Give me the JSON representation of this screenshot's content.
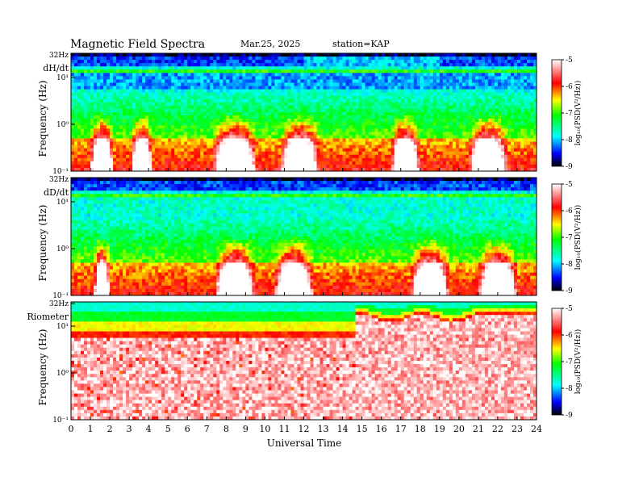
{
  "header": {
    "title": "Magnetic  Field  Spectra",
    "date": "Mar.25, 2025",
    "station": "station=KAP"
  },
  "chart_data": [
    {
      "type": "heatmap",
      "panel_label": "dH/dt",
      "ylabel": "Frequency  (Hz)",
      "ytick_labels": [
        "32Hz",
        "10¹",
        "10⁰",
        "10⁻¹"
      ],
      "y_scale": "log",
      "xlim": [
        0,
        24
      ],
      "colorbar": {
        "ticks": [
          "-5",
          "-6",
          "-7",
          "-8",
          "-9"
        ],
        "label": "log₁₀(PSD(V²/Hz))",
        "range": [
          -9,
          -5
        ]
      },
      "pc_band_hours": [
        [
          1,
          2.2
        ],
        [
          3.1,
          4.2
        ],
        [
          7.3,
          9.6
        ],
        [
          10.8,
          12.8
        ],
        [
          16.5,
          18
        ],
        [
          20.5,
          22.5
        ]
      ]
    },
    {
      "type": "heatmap",
      "panel_label": "dD/dt",
      "ylabel": "Frequency  (Hz)",
      "ytick_labels": [
        "32Hz",
        "10¹",
        "10⁰",
        "10⁻¹"
      ],
      "y_scale": "log",
      "xlim": [
        0,
        24
      ],
      "colorbar": {
        "ticks": [
          "-5",
          "-6",
          "-7",
          "-8",
          "-9"
        ],
        "label": "log₁₀(PSD(V²/Hz))",
        "range": [
          -9,
          -5
        ]
      },
      "pc_band_hours": [
        [
          1.2,
          2.0
        ],
        [
          7.4,
          9.5
        ],
        [
          10.5,
          12.5
        ],
        [
          17.5,
          19.5
        ],
        [
          21,
          23
        ]
      ]
    },
    {
      "type": "heatmap",
      "panel_label": "Riometer",
      "ylabel": "Frequency  (Hz)",
      "ytick_labels": [
        "32Hz",
        "10¹",
        "10⁰",
        "10⁻¹"
      ],
      "y_scale": "log",
      "xlim": [
        0,
        24
      ],
      "colorbar": {
        "ticks": [
          "-5",
          "-6",
          "-7",
          "-8",
          "-9"
        ],
        "label": "log₁₀(PSD(V²/Hz))",
        "range": [
          -9,
          -5
        ]
      }
    }
  ],
  "xaxis": {
    "label": "Universal  Time",
    "ticks": [
      "0",
      "1",
      "2",
      "3",
      "4",
      "5",
      "6",
      "7",
      "8",
      "9",
      "10",
      "11",
      "12",
      "13",
      "14",
      "15",
      "16",
      "17",
      "18",
      "19",
      "20",
      "21",
      "22",
      "23",
      "24"
    ]
  }
}
